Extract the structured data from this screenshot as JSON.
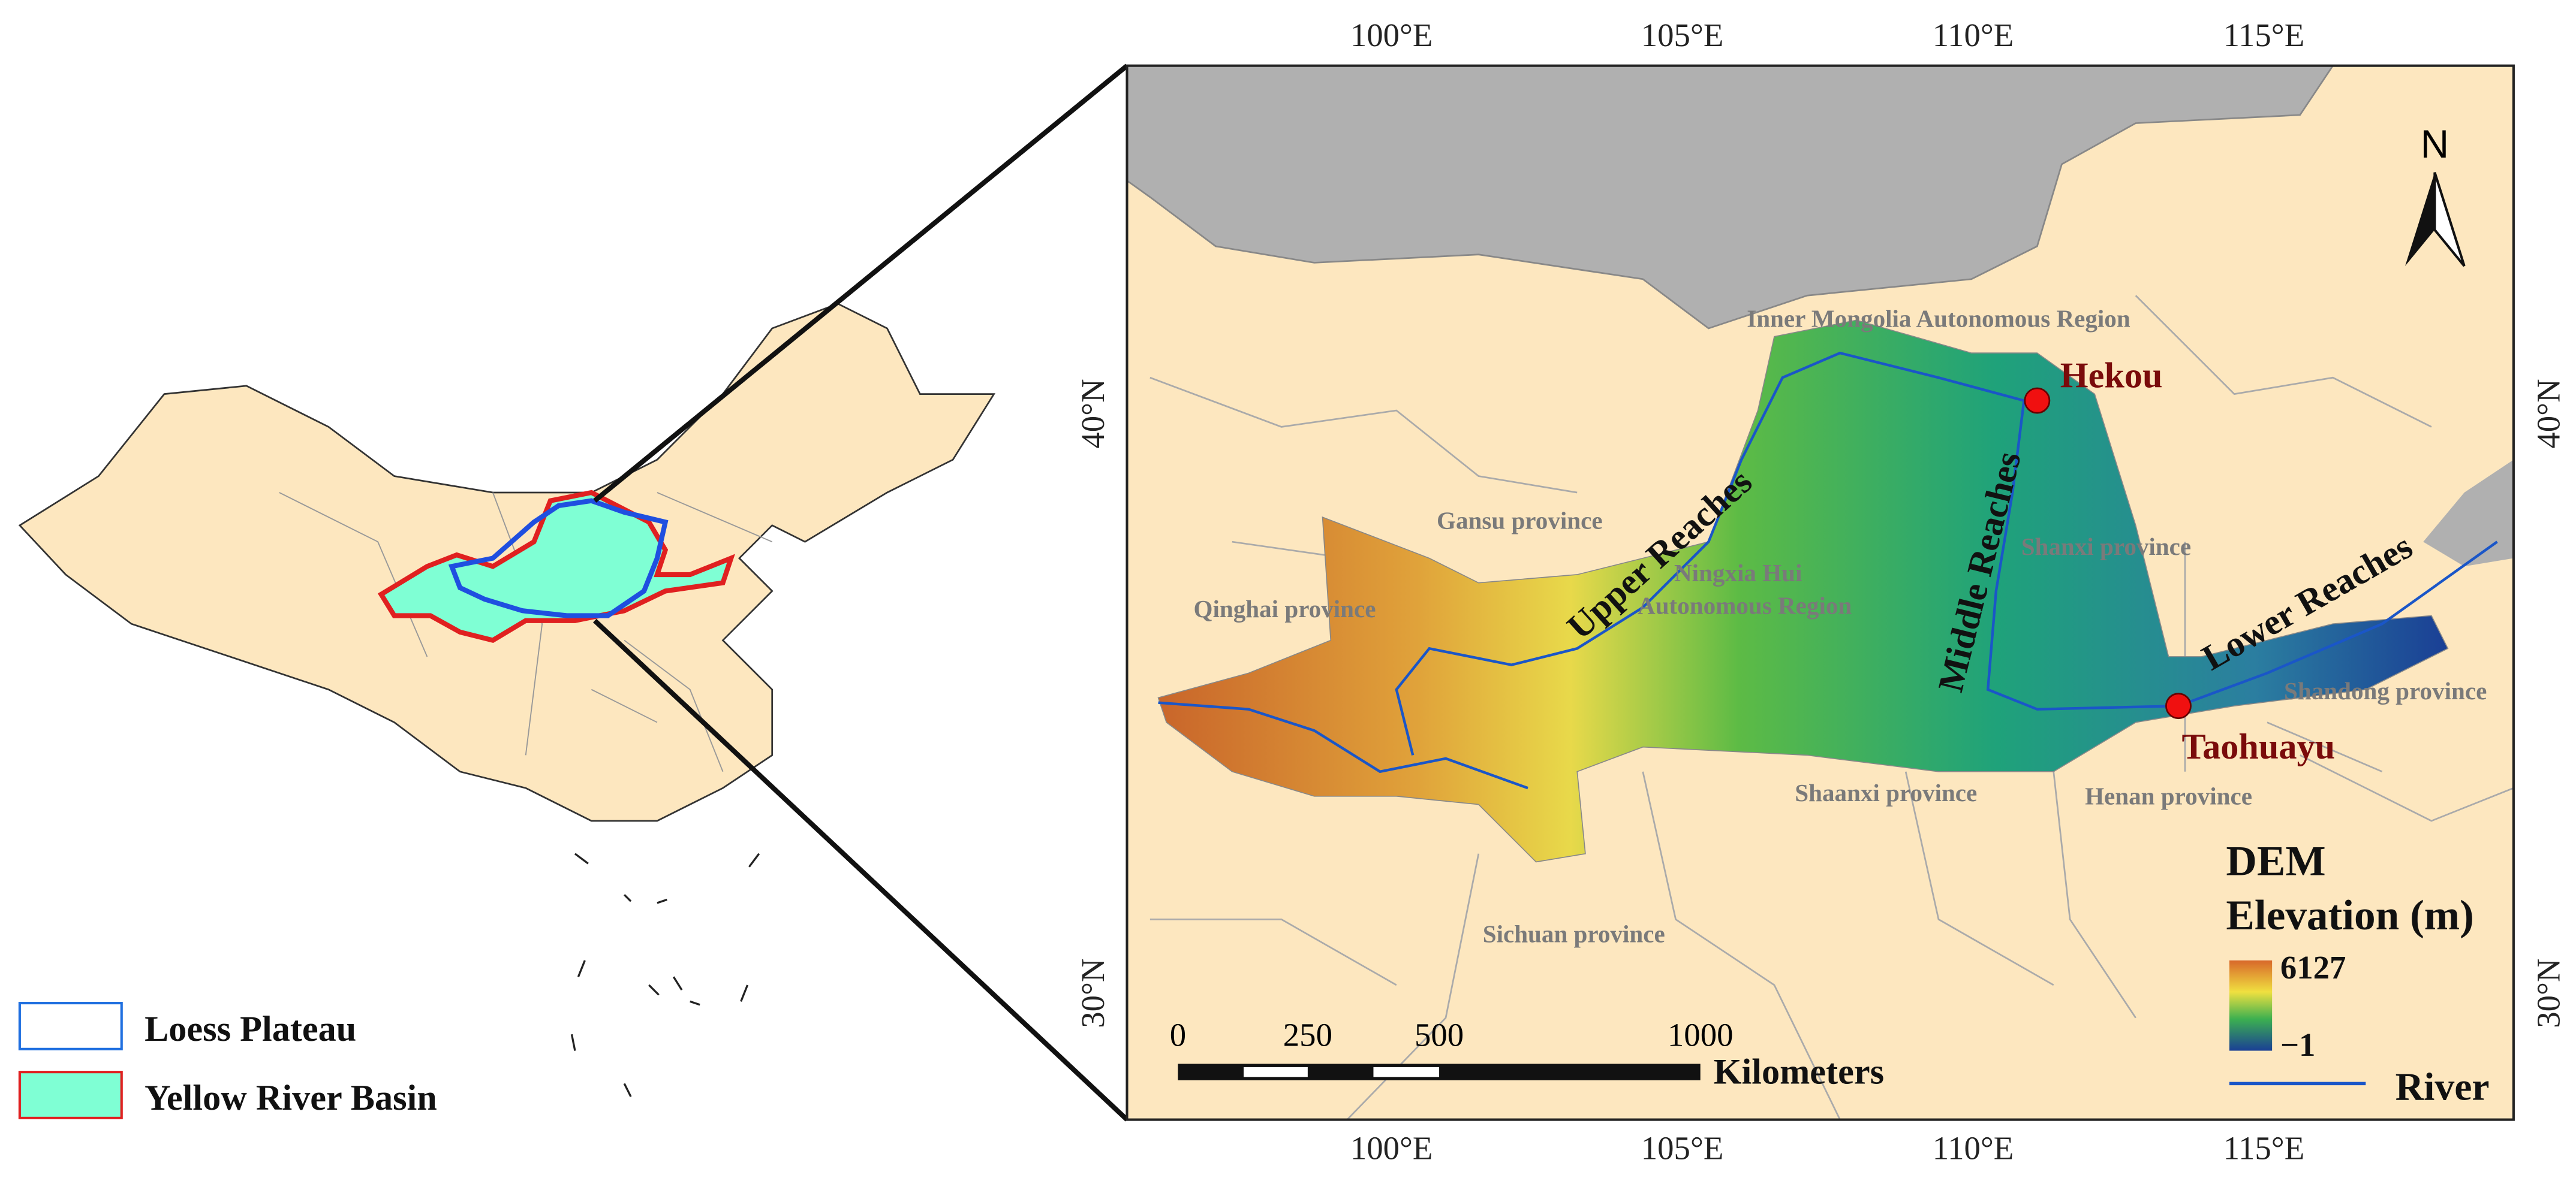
{
  "inset_map": {
    "legend": [
      "Loess Plateau",
      "Yellow River Basin"
    ]
  },
  "main_map": {
    "longitude_labels": [
      "100°E",
      "105°E",
      "110°E",
      "115°E"
    ],
    "latitude_labels": [
      "40°N",
      "30°N"
    ],
    "north_label": "N",
    "regions": [
      "Inner Mongolia Autonomous Region",
      "Gansu province",
      "Ningxia Hui",
      "Autonomous Region",
      "Shanxi province",
      "Qinghai province",
      "Shaanxi province",
      "Henan province",
      "Shandong province",
      "Sichuan province"
    ],
    "reaches": [
      "Upper Reaches",
      "Middle Reaches",
      "Lower Reaches"
    ],
    "stations": [
      "Hekou",
      "Taohuayu"
    ],
    "scale_bar": {
      "labels": [
        "0",
        "250",
        "500",
        "1000"
      ],
      "unit": "Kilometers"
    },
    "legend": {
      "title": "DEM",
      "subtitle": "Elevation (m)",
      "max": "6127",
      "min": "−1",
      "river": "River"
    }
  }
}
